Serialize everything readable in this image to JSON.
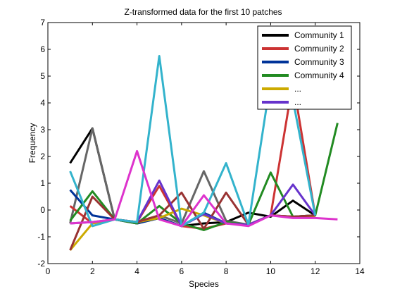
{
  "chart_data": {
    "type": "line",
    "title": "Z-transformed data for the first 10 patches",
    "xlabel": "Species",
    "ylabel": "Frequency",
    "xlim": [
      0,
      14
    ],
    "ylim": [
      -2,
      7
    ],
    "xticks": [
      0,
      2,
      4,
      6,
      8,
      10,
      12,
      14
    ],
    "yticks": [
      -2,
      -1,
      0,
      1,
      2,
      3,
      4,
      5,
      6,
      7
    ],
    "grid": false,
    "legend_position": "top-right",
    "legend": [
      {
        "label": "Community 1",
        "color": "#000000"
      },
      {
        "label": "Community 2",
        "color": "#cc3333"
      },
      {
        "label": "Community 3",
        "color": "#003399"
      },
      {
        "label": "Community 4",
        "color": "#228b22"
      },
      {
        "label": "...",
        "color": "#ccaa00"
      },
      {
        "label": "...",
        "color": "#6633cc"
      }
    ],
    "series": [
      {
        "color": "#000000",
        "x": [
          1,
          2,
          3,
          4,
          5,
          6,
          7,
          8,
          9,
          10,
          11,
          12
        ],
        "values": [
          1.75,
          3.05,
          -0.35,
          -0.5,
          -0.3,
          -0.6,
          -0.5,
          -0.45,
          -0.1,
          -0.25,
          0.35,
          -0.2
        ]
      },
      {
        "color": "#666666",
        "x": [
          1,
          2,
          3,
          4,
          5,
          6,
          7,
          8,
          9,
          10,
          11,
          12
        ],
        "values": [
          -0.5,
          3.05,
          -0.35,
          -0.45,
          -0.2,
          -0.5,
          1.45,
          -0.4,
          -0.55,
          -0.2,
          -0.25,
          -0.2
        ]
      },
      {
        "color": "#cc3333",
        "x": [
          1,
          2,
          3,
          4,
          5,
          6,
          7,
          8,
          9,
          10,
          11,
          12
        ],
        "values": [
          0.15,
          -0.5,
          -0.35,
          -0.45,
          0.9,
          -0.6,
          -0.7,
          -0.5,
          -0.55,
          -0.2,
          4.8,
          -0.2
        ]
      },
      {
        "color": "#003399",
        "x": [
          1,
          2,
          3,
          4,
          5,
          6,
          7,
          8,
          9,
          10,
          11,
          12
        ],
        "values": [
          0.75,
          -0.2,
          -0.35,
          -0.5,
          -0.3,
          -0.6,
          -0.1,
          -0.5,
          -0.55,
          -0.2,
          -0.25,
          -0.2
        ]
      },
      {
        "color": "#228b22",
        "x": [
          1,
          2,
          3,
          4,
          5,
          6,
          7,
          8,
          9,
          10,
          11,
          12,
          13
        ],
        "values": [
          -0.4,
          0.7,
          -0.35,
          -0.5,
          0.15,
          -0.5,
          -0.75,
          -0.45,
          -0.55,
          1.4,
          -0.25,
          -0.2,
          3.25
        ]
      },
      {
        "color": "#ccaa00",
        "x": [
          1,
          2,
          3,
          4,
          5,
          6,
          7,
          8,
          9,
          10,
          11,
          12
        ],
        "values": [
          -1.5,
          -0.5,
          -0.35,
          -0.45,
          -0.3,
          0.05,
          -0.2,
          -0.5,
          -0.55,
          -0.2,
          -0.25,
          -0.25
        ]
      },
      {
        "color": "#993333",
        "x": [
          1,
          2,
          3,
          4,
          5,
          6,
          7,
          8,
          9,
          10,
          11,
          12
        ],
        "values": [
          -1.5,
          0.5,
          -0.35,
          -0.45,
          -0.2,
          0.65,
          -0.7,
          0.65,
          -0.55,
          -0.2,
          -0.25,
          -0.2
        ]
      },
      {
        "color": "#6633cc",
        "x": [
          1,
          2,
          3,
          4,
          5,
          6,
          7,
          8,
          9,
          10,
          11,
          12
        ],
        "values": [
          -0.5,
          -0.45,
          -0.35,
          -0.45,
          1.1,
          -0.6,
          -0.15,
          -0.5,
          -0.55,
          -0.2,
          0.95,
          -0.2
        ]
      },
      {
        "color": "#33b3cc",
        "x": [
          1,
          2,
          3,
          4,
          5,
          6,
          7,
          8,
          9,
          10,
          11,
          12
        ],
        "values": [
          1.45,
          -0.6,
          -0.35,
          -0.45,
          5.75,
          -0.6,
          -0.1,
          1.75,
          -0.55,
          4.85,
          4.1,
          -0.2
        ]
      },
      {
        "color": "#dd33cc",
        "x": [
          1,
          2,
          3,
          4,
          5,
          6,
          7,
          8,
          9,
          10,
          11,
          12,
          13
        ],
        "values": [
          -0.5,
          -0.45,
          -0.35,
          2.2,
          -0.35,
          -0.6,
          0.55,
          -0.5,
          -0.6,
          -0.2,
          -0.3,
          -0.3,
          -0.35
        ]
      }
    ]
  }
}
